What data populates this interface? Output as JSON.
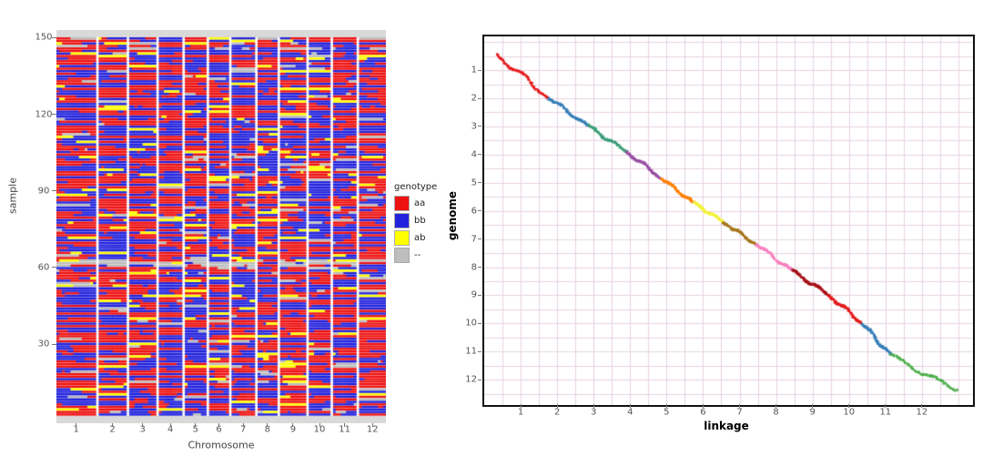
{
  "chart_data": [
    {
      "type": "heatmap",
      "name": "genotype-by-chromosome-heatmap",
      "xlabel": "Chromosome",
      "ylabel": "sample",
      "x_ticks": [
        "1",
        "2",
        "3",
        "4",
        "5",
        "6",
        "7",
        "8",
        "9",
        "10",
        "11",
        "12"
      ],
      "y_ticks": [
        150,
        120,
        90,
        60,
        30
      ],
      "y_top_value": 153,
      "y_bottom_value": -1,
      "column_rel_widths": [
        44,
        31,
        30,
        26,
        24,
        22,
        26,
        22,
        29,
        24,
        26,
        30
      ],
      "legend": {
        "title": "genotype",
        "items": [
          {
            "label": "aa",
            "color": "#ee1111"
          },
          {
            "label": "bb",
            "color": "#2222dd"
          },
          {
            "label": "ab",
            "color": "#ffff00"
          },
          {
            "label": "--",
            "color": "#bdbdbd"
          }
        ]
      },
      "genotype_colors": {
        "aa": "#ee1111",
        "bb": "#2222dd",
        "ab": "#ffff00",
        "missing": "#bdbdbd"
      },
      "proportions": {
        "aa": 0.45,
        "bb": 0.45,
        "ab": 0.06,
        "missing": 0.04
      },
      "missing_band_sample": 62,
      "run_continue_prob": 0.9,
      "panel_bg": "#d9d9d9",
      "grid": false,
      "seed": 20240615
    },
    {
      "type": "scatter",
      "name": "genome-vs-linkage-collinearity",
      "xlabel": "linkage",
      "ylabel": "genome",
      "x_ticks": [
        1,
        2,
        3,
        4,
        5,
        6,
        7,
        8,
        9,
        10,
        11,
        12
      ],
      "y_ticks": [
        1,
        2,
        3,
        4,
        5,
        6,
        7,
        8,
        9,
        10,
        11,
        12
      ],
      "x_range": [
        0,
        13.4
      ],
      "y_range": [
        -0.2,
        12.9
      ],
      "y_inverted": true,
      "grid": true,
      "grid_step": 0.5,
      "grid_color": "#e8d2e2",
      "frame_color": "#111111",
      "segments": [
        {
          "group": 1,
          "color": "#e41a1c",
          "x": [
            0.35,
            1.75
          ],
          "y": [
            0.45,
            2.0
          ]
        },
        {
          "group": 2,
          "color": "#377eb8",
          "x": [
            1.75,
            2.85
          ],
          "y": [
            2.0,
            2.95
          ]
        },
        {
          "group": 3,
          "color": "#3a9e77",
          "x": [
            2.85,
            3.9
          ],
          "y": [
            2.95,
            3.9
          ]
        },
        {
          "group": 4,
          "color": "#984ea3",
          "x": [
            3.9,
            4.85
          ],
          "y": [
            3.9,
            4.85
          ]
        },
        {
          "group": 5,
          "color": "#ff7f00",
          "x": [
            4.85,
            5.75
          ],
          "y": [
            4.85,
            5.7
          ]
        },
        {
          "group": 6,
          "color": "#f2f23a",
          "x": [
            5.75,
            6.55
          ],
          "y": [
            5.7,
            6.4
          ]
        },
        {
          "group": 7,
          "color": "#a6761d",
          "x": [
            6.55,
            7.45
          ],
          "y": [
            6.4,
            7.2
          ]
        },
        {
          "group": 8,
          "color": "#f781bf",
          "x": [
            7.45,
            8.45
          ],
          "y": [
            7.2,
            8.1
          ]
        },
        {
          "group": 9,
          "color": "#a50f15",
          "x": [
            8.45,
            9.45
          ],
          "y": [
            8.1,
            9.0
          ]
        },
        {
          "group": 10,
          "color": "#e41a1c",
          "x": [
            9.45,
            10.35
          ],
          "y": [
            9.0,
            10.0
          ]
        },
        {
          "group": 11,
          "color": "#377eb8",
          "x": [
            10.35,
            11.15
          ],
          "y": [
            10.0,
            11.1
          ]
        },
        {
          "group": 12,
          "color": "#4daf4a",
          "x": [
            11.15,
            12.95
          ],
          "y": [
            11.1,
            12.4
          ]
        }
      ],
      "seed": 777
    }
  ]
}
